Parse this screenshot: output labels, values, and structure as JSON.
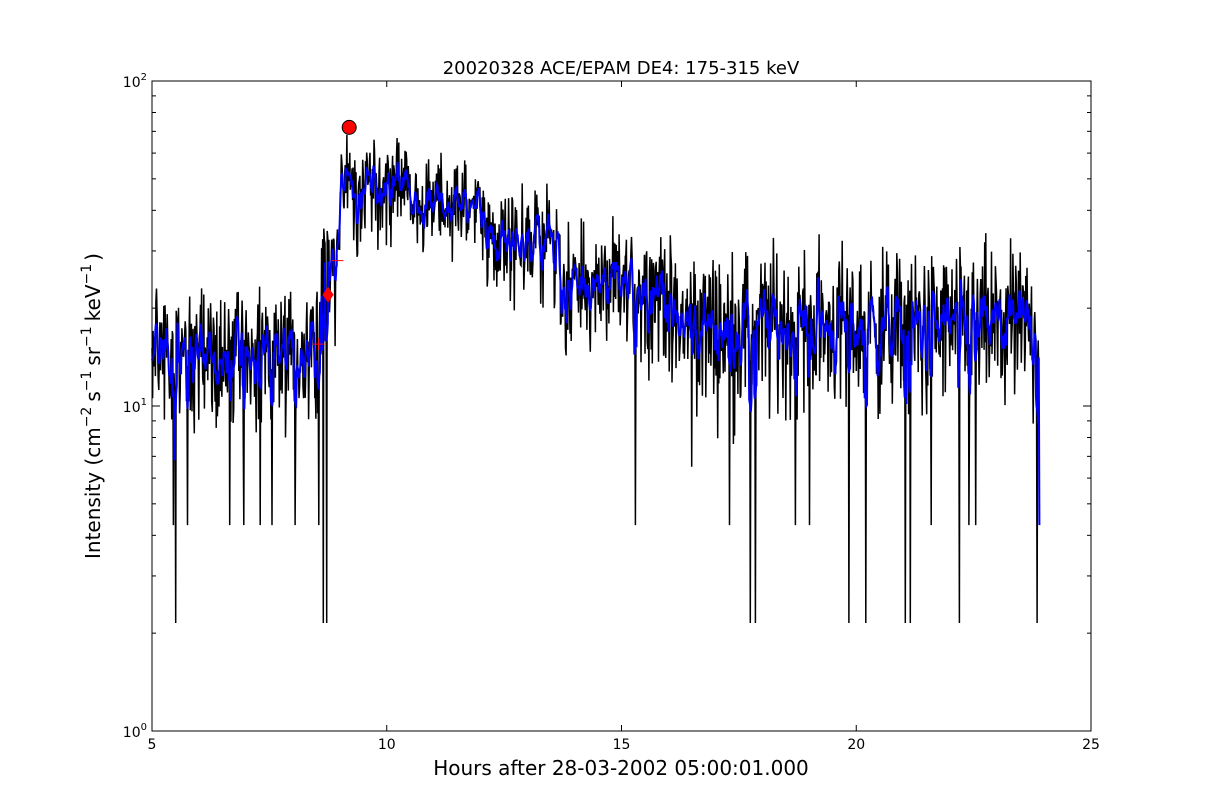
{
  "chart_data": {
    "type": "line",
    "title": "20020328 ACE/EPAM DE4: 175-315 keV",
    "xlabel": "Hours after 28-03-2002 05:00:01.000",
    "ylabel_parts": {
      "prefix": "Intensity (cm",
      "exp_cm": "−2",
      "s": "s",
      "exp_s": "−1",
      "sr": "sr",
      "exp_sr": "−1",
      "kev": "keV",
      "exp_kev": "−1",
      "suffix": ")"
    },
    "xlim": [
      5,
      25
    ],
    "ylim": [
      1,
      100
    ],
    "yscale": "log",
    "grid": false,
    "x_ticks": [
      5,
      10,
      15,
      20,
      25
    ],
    "x_tick_labels": [
      "5",
      "10",
      "15",
      "20",
      "25"
    ],
    "y_ticks": [
      {
        "value": 1,
        "base": "10",
        "exp": "0"
      },
      {
        "value": 10,
        "base": "10",
        "exp": "1"
      },
      {
        "value": 100,
        "base": "10",
        "exp": "2"
      }
    ],
    "series": [
      {
        "style": "raw",
        "color": "#000000",
        "x_start": 5.0,
        "x_end": 23.9,
        "segments": [
          {
            "x_from": 5.0,
            "x_to": 8.6,
            "level": 15,
            "low": 6.5,
            "high": 27
          },
          {
            "x_from": 8.6,
            "x_to": 9.0,
            "level": 30,
            "low": 9,
            "high": 40
          },
          {
            "x_from": 9.0,
            "x_to": 10.5,
            "level": 50,
            "low": 26,
            "high": 78
          },
          {
            "x_from": 10.5,
            "x_to": 12.0,
            "level": 42,
            "low": 25,
            "high": 67
          },
          {
            "x_from": 12.0,
            "x_to": 13.7,
            "level": 33,
            "low": 17,
            "high": 56
          },
          {
            "x_from": 13.7,
            "x_to": 16.0,
            "level": 24,
            "low": 11,
            "high": 40
          },
          {
            "x_from": 16.0,
            "x_to": 23.85,
            "level": 18,
            "low": 7,
            "high": 38
          }
        ],
        "dips": [
          {
            "x": 5.5,
            "y": 2.15
          },
          {
            "x": 5.45,
            "y": 4.3
          },
          {
            "x": 5.75,
            "y": 4.3
          },
          {
            "x": 6.65,
            "y": 4.3
          },
          {
            "x": 6.95,
            "y": 4.3
          },
          {
            "x": 7.3,
            "y": 4.3
          },
          {
            "x": 7.55,
            "y": 4.3
          },
          {
            "x": 8.05,
            "y": 4.3
          },
          {
            "x": 8.55,
            "y": 4.3
          },
          {
            "x": 8.65,
            "y": 2.15
          },
          {
            "x": 8.72,
            "y": 2.15
          },
          {
            "x": 15.3,
            "y": 4.3
          },
          {
            "x": 16.5,
            "y": 6.5
          },
          {
            "x": 17.3,
            "y": 4.3
          },
          {
            "x": 17.75,
            "y": 2.15
          },
          {
            "x": 17.85,
            "y": 2.15
          },
          {
            "x": 18.7,
            "y": 4.3
          },
          {
            "x": 19.0,
            "y": 4.3
          },
          {
            "x": 19.85,
            "y": 2.15
          },
          {
            "x": 20.2,
            "y": 2.15
          },
          {
            "x": 21.05,
            "y": 2.15
          },
          {
            "x": 21.15,
            "y": 2.15
          },
          {
            "x": 21.6,
            "y": 4.3
          },
          {
            "x": 22.2,
            "y": 2.15
          },
          {
            "x": 22.4,
            "y": 4.3
          },
          {
            "x": 22.55,
            "y": 4.3
          },
          {
            "x": 23.85,
            "y": 2.15
          }
        ]
      },
      {
        "style": "smoothed",
        "color": "#0000ff",
        "x_start": 5.0,
        "x_end": 23.9,
        "end_value": 4.3
      }
    ],
    "markers": [
      {
        "shape": "circle",
        "x": 9.2,
        "y": 72,
        "color": "#ff0000"
      },
      {
        "shape": "diamond",
        "x": 8.75,
        "y": 22,
        "color": "#ff0000"
      },
      {
        "shape": "plus",
        "x": 8.95,
        "y": 28,
        "color": "#ff0000"
      },
      {
        "shape": "plus",
        "x": 8.55,
        "y": 15.5,
        "color": "#ff0000"
      }
    ]
  }
}
